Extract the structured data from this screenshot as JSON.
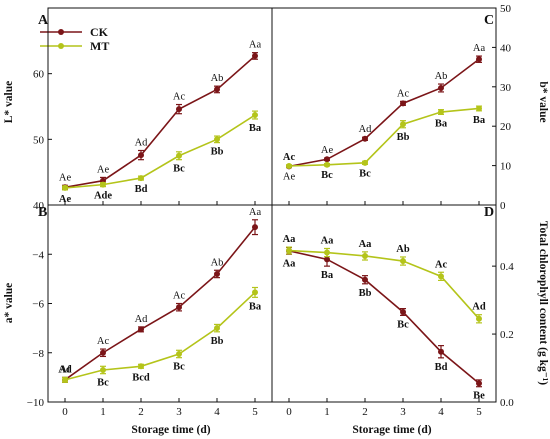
{
  "figure": {
    "xlabel": "Storage time (d)",
    "colors": {
      "CK": "#7b1518",
      "MT": "#b4c41a",
      "axis": "#111111"
    }
  },
  "legend": [
    {
      "name": "CK",
      "color": "#7b1518"
    },
    {
      "name": "MT",
      "color": "#b4c41a"
    }
  ],
  "chart_data": [
    {
      "panel": "A",
      "type": "line",
      "ylabel": "L* value",
      "y_axis_side": "left",
      "ylim": [
        40,
        70
      ],
      "yticks": [
        40,
        50,
        60
      ],
      "x": [
        0,
        1,
        2,
        3,
        4,
        5
      ],
      "series": [
        {
          "name": "CK",
          "values": [
            42.7,
            43.7,
            47.6,
            54.6,
            57.6,
            62.7
          ],
          "error": [
            0.3,
            0.5,
            0.7,
            0.7,
            0.5,
            0.5
          ],
          "labels": [
            "Ae",
            "Ae",
            "Ad",
            "Ac",
            "Ab",
            "Aa"
          ]
        },
        {
          "name": "MT",
          "values": [
            42.6,
            43.1,
            44.1,
            47.5,
            50.0,
            53.7
          ],
          "error": [
            0.3,
            0.3,
            0.3,
            0.6,
            0.5,
            0.6
          ],
          "labels": [
            "Ae",
            "Ade",
            "Bd",
            "Bc",
            "Bb",
            "Ba"
          ]
        }
      ]
    },
    {
      "panel": "C",
      "type": "line",
      "ylabel": "b* value",
      "y_axis_side": "right",
      "ylim": [
        0,
        50
      ],
      "yticks": [
        0,
        10,
        20,
        30,
        40,
        50
      ],
      "x": [
        0,
        1,
        2,
        3,
        4,
        5
      ],
      "series": [
        {
          "name": "CK",
          "values": [
            9.8,
            11.6,
            16.8,
            25.8,
            29.7,
            37.0
          ],
          "error": [
            0.3,
            0.3,
            0.4,
            0.5,
            1.0,
            0.8
          ],
          "labels": [
            "Ae",
            "Ae",
            "Ad",
            "Ac",
            "Ab",
            "Aa"
          ]
        },
        {
          "name": "MT",
          "values": [
            9.9,
            10.2,
            10.7,
            20.5,
            23.6,
            24.5
          ],
          "error": [
            0.3,
            0.3,
            0.4,
            0.9,
            0.6,
            0.6
          ],
          "labels": [
            "Ac",
            "Bc",
            "Bc",
            "Bb",
            "Ba",
            "Ba"
          ]
        }
      ]
    },
    {
      "panel": "B",
      "type": "line",
      "ylabel": "a* value",
      "y_axis_side": "left",
      "ylim": [
        -10,
        -2
      ],
      "yticks": [
        -10,
        -8,
        -6,
        -4
      ],
      "x": [
        0,
        1,
        2,
        3,
        4,
        5
      ],
      "series": [
        {
          "name": "CK",
          "values": [
            -9.1,
            -8.0,
            -7.05,
            -6.15,
            -4.8,
            -2.9
          ],
          "error": [
            0.1,
            0.15,
            0.1,
            0.15,
            0.15,
            0.3
          ],
          "labels": [
            "Af",
            "Ac",
            "Ad",
            "Ac",
            "Ab",
            "Aa"
          ]
        },
        {
          "name": "MT",
          "values": [
            -9.1,
            -8.7,
            -8.55,
            -8.05,
            -7.0,
            -5.55
          ],
          "error": [
            0.1,
            0.15,
            0.08,
            0.15,
            0.15,
            0.2
          ],
          "labels": [
            "Ad",
            "Bc",
            "Bcd",
            "Bc",
            "Bb",
            "Ba"
          ]
        }
      ]
    },
    {
      "panel": "D",
      "type": "line",
      "ylabel": "Total chlorophyll content (g kg⁻¹)",
      "y_axis_side": "right",
      "ylim": [
        0.0,
        0.58
      ],
      "yticks": [
        0.0,
        0.2,
        0.4
      ],
      "x": [
        0,
        1,
        2,
        3,
        4,
        5
      ],
      "series": [
        {
          "name": "CK",
          "values": [
            0.445,
            0.42,
            0.36,
            0.265,
            0.148,
            0.055
          ],
          "error": [
            0.01,
            0.02,
            0.012,
            0.01,
            0.018,
            0.01
          ],
          "labels": [
            "Aa",
            "Ba",
            "Bb",
            "Bc",
            "Bd",
            "Be"
          ]
        },
        {
          "name": "MT",
          "values": [
            0.446,
            0.44,
            0.43,
            0.415,
            0.37,
            0.245
          ],
          "error": [
            0.01,
            0.012,
            0.012,
            0.012,
            0.012,
            0.012
          ],
          "labels": [
            "Aa",
            "Aa",
            "Aa",
            "Ab",
            "Ac",
            "Ad"
          ]
        }
      ]
    }
  ]
}
